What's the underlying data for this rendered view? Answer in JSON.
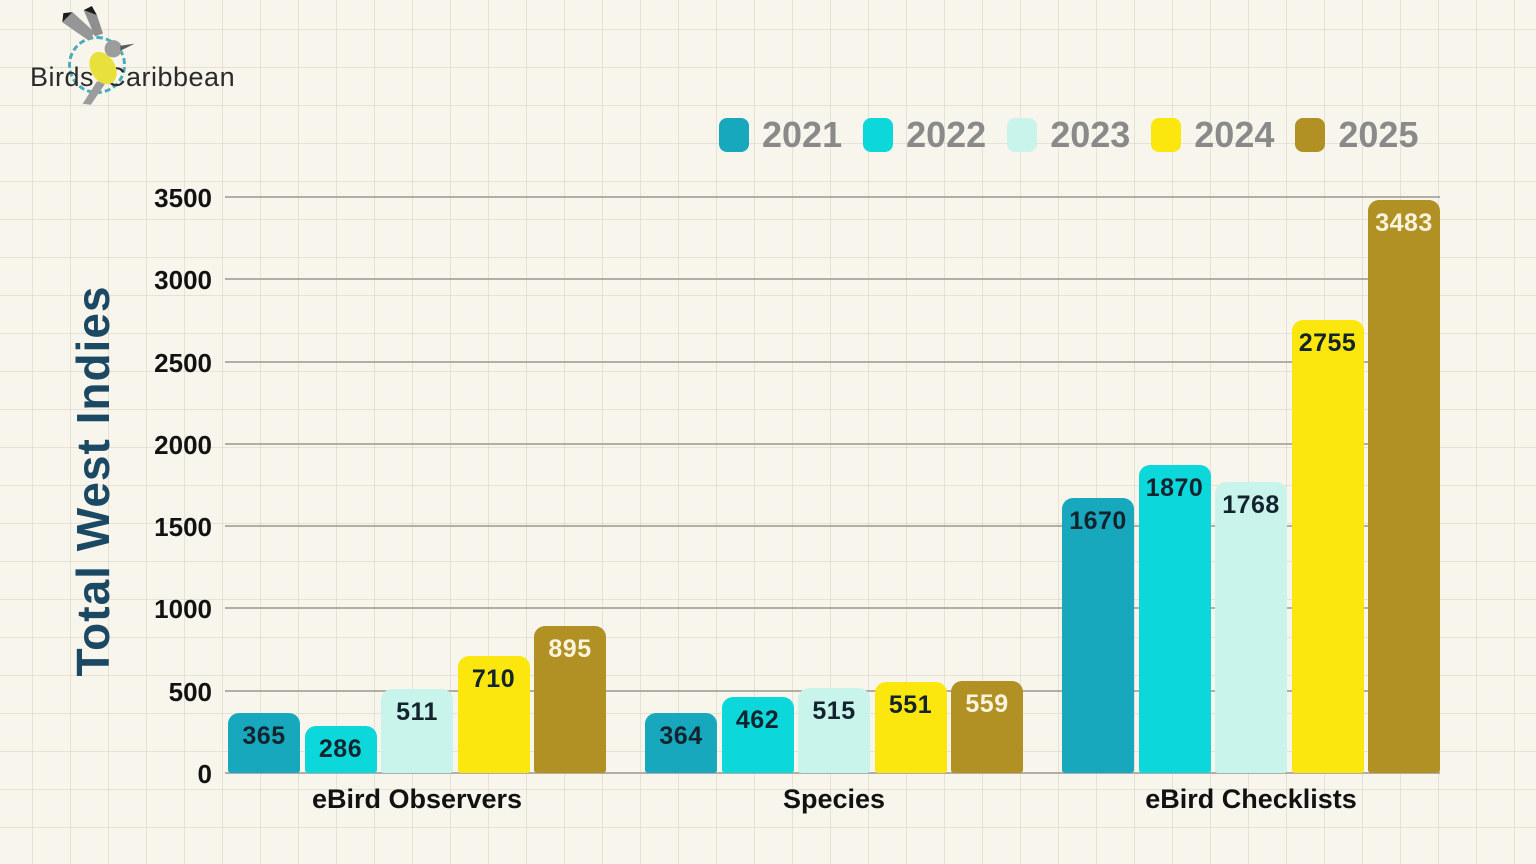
{
  "logo": {
    "brand_left": "Birds",
    "brand_right": "Caribbean"
  },
  "chart_data": {
    "type": "bar",
    "title": "",
    "ylabel": "Total West Indies",
    "categories": [
      "eBird Observers",
      "Species",
      "eBird Checklists"
    ],
    "series": [
      {
        "name": "2021",
        "color": "#17A8BE",
        "label_color": "#14242E",
        "values": [
          365,
          364,
          1670
        ]
      },
      {
        "name": "2022",
        "color": "#0CD8DC",
        "label_color": "#14242E",
        "values": [
          286,
          462,
          1870
        ]
      },
      {
        "name": "2023",
        "color": "#C9F4EC",
        "label_color": "#14242E",
        "values": [
          511,
          515,
          1768
        ]
      },
      {
        "name": "2024",
        "color": "#FBE70D",
        "label_color": "#14242E",
        "values": [
          710,
          551,
          2755
        ]
      },
      {
        "name": "2025",
        "color": "#B29124",
        "label_color": "#FAF4DF",
        "values": [
          895,
          559,
          3483
        ]
      }
    ],
    "ylim": [
      0,
      3500
    ],
    "yticks": [
      0,
      500,
      1000,
      1500,
      2000,
      2500,
      3000,
      3500
    ],
    "grid": true,
    "legend_position": "top-right",
    "colors": {
      "background": "#F7F5EC",
      "gridline": "#9E9D94",
      "axis_text": "#121212",
      "ylabel_text": "#1B4964",
      "legend_text": "#8A8A8A",
      "logo_circle": "#49ADBC",
      "logo_bird_body": "#E8E13C",
      "logo_bird_wing": "#969696"
    }
  }
}
